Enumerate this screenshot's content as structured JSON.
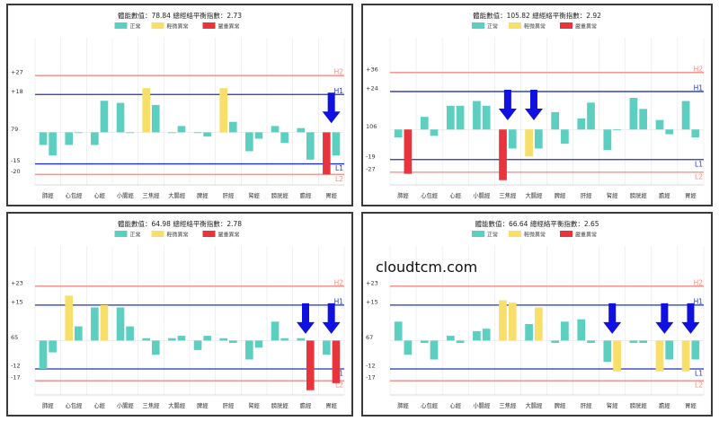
{
  "watermark": "cloudtcm.com",
  "legend_labels": [
    "正常",
    "輕微異常",
    "嚴重異常"
  ],
  "colors": {
    "normal": "#5ccfc1",
    "mild": "#f7df6a",
    "severe": "#e8343c",
    "upper_line": "#1f31c8",
    "lower_line": "#1f31c8",
    "H2_line": "#f08a84",
    "L2_line": "#f08a84",
    "arrow": "#1010e0",
    "grid": "#e6e6e6"
  },
  "chart_data": [
    {
      "type": "bar",
      "title": "體能數值：78.84 總經絡平衡指數：2.73",
      "center_label": "79",
      "ticks": [
        {
          "label": "+27",
          "value": 27
        },
        {
          "label": "+18",
          "value": 18
        },
        {
          "label": "79",
          "value": 0
        },
        {
          "label": "-15",
          "value": -15
        },
        {
          "label": "-20",
          "value": -20
        }
      ],
      "ylim": [
        -25,
        45
      ],
      "thresholds": {
        "H2": 27,
        "H1": 18,
        "L1": -15,
        "L2": -20
      },
      "threshold_labels": [
        "H2",
        "H1",
        "L1",
        "L2"
      ],
      "categories": [
        "肺經",
        "心包經",
        "心經",
        "小腸經",
        "三焦經",
        "大腸經",
        "脾經",
        "肝經",
        "腎經",
        "膀胱經",
        "膽經",
        "胃經"
      ],
      "pairs": [
        [
          {
            "v": -6,
            "s": "normal"
          },
          {
            "v": -11,
            "s": "normal"
          }
        ],
        [
          {
            "v": -6,
            "s": "normal"
          },
          {
            "v": 0,
            "s": "normal"
          }
        ],
        [
          {
            "v": -6,
            "s": "normal"
          },
          {
            "v": 15,
            "s": "normal"
          }
        ],
        [
          {
            "v": 14,
            "s": "normal"
          },
          {
            "v": 0,
            "s": "normal"
          }
        ],
        [
          {
            "v": 21,
            "s": "mild"
          },
          {
            "v": 13,
            "s": "normal"
          }
        ],
        [
          {
            "v": 0,
            "s": "normal"
          },
          {
            "v": 3,
            "s": "normal"
          }
        ],
        [
          {
            "v": 0,
            "s": "normal"
          },
          {
            "v": -2,
            "s": "normal"
          }
        ],
        [
          {
            "v": 21,
            "s": "mild"
          },
          {
            "v": 5,
            "s": "normal"
          }
        ],
        [
          {
            "v": -9,
            "s": "normal"
          },
          {
            "v": -3,
            "s": "normal"
          }
        ],
        [
          {
            "v": 3,
            "s": "normal"
          },
          {
            "v": -5,
            "s": "normal"
          }
        ],
        [
          {
            "v": 2,
            "s": "normal"
          },
          {
            "v": -13,
            "s": "normal"
          }
        ],
        [
          {
            "v": -20,
            "s": "severe"
          },
          {
            "v": -11,
            "s": "normal"
          }
        ]
      ],
      "arrows": [
        11
      ]
    },
    {
      "type": "bar",
      "title": "體能數值：105.82 總經絡平衡指數：2.92",
      "center_label": "106",
      "ticks": [
        {
          "label": "+36",
          "value": 36
        },
        {
          "label": "+24",
          "value": 24
        },
        {
          "label": "106",
          "value": 0
        },
        {
          "label": "-19",
          "value": -19
        },
        {
          "label": "-27",
          "value": -27
        }
      ],
      "ylim": [
        -35,
        58
      ],
      "thresholds": {
        "H2": 36,
        "H1": 24,
        "L1": -19,
        "L2": -27
      },
      "threshold_labels": [
        "H2",
        "H1",
        "L1",
        "L2"
      ],
      "categories": [
        "肺經",
        "心包經",
        "心經",
        "小腸經",
        "三焦經",
        "大腸經",
        "脾經",
        "肝經",
        "腎經",
        "膀胱經",
        "膽經",
        "胃經"
      ],
      "pairs": [
        [
          {
            "v": -5,
            "s": "normal"
          },
          {
            "v": -28,
            "s": "severe"
          }
        ],
        [
          {
            "v": 8,
            "s": "normal"
          },
          {
            "v": -4,
            "s": "normal"
          }
        ],
        [
          {
            "v": 15,
            "s": "normal"
          },
          {
            "v": 15,
            "s": "normal"
          }
        ],
        [
          {
            "v": 18,
            "s": "normal"
          },
          {
            "v": 15,
            "s": "normal"
          }
        ],
        [
          {
            "v": -32,
            "s": "severe"
          },
          {
            "v": -12,
            "s": "normal"
          }
        ],
        [
          {
            "v": -17,
            "s": "mild"
          },
          {
            "v": -12,
            "s": "normal"
          }
        ],
        [
          {
            "v": 11,
            "s": "normal"
          },
          {
            "v": -9,
            "s": "normal"
          }
        ],
        [
          {
            "v": 7,
            "s": "normal"
          },
          {
            "v": 17,
            "s": "normal"
          }
        ],
        [
          {
            "v": -13,
            "s": "normal"
          },
          {
            "v": 0,
            "s": "normal"
          }
        ],
        [
          {
            "v": 20,
            "s": "normal"
          },
          {
            "v": 13,
            "s": "normal"
          }
        ],
        [
          {
            "v": 6,
            "s": "normal"
          },
          {
            "v": -3,
            "s": "normal"
          }
        ],
        [
          {
            "v": 18,
            "s": "normal"
          },
          {
            "v": -5,
            "s": "normal"
          }
        ]
      ],
      "arrows": [
        4,
        5
      ]
    },
    {
      "type": "bar",
      "title": "體能數值：64.98 總經絡平衡指數：2.78",
      "center_label": "65",
      "ticks": [
        {
          "label": "+23",
          "value": 23
        },
        {
          "label": "+15",
          "value": 15
        },
        {
          "label": "65",
          "value": 0
        },
        {
          "label": "-12",
          "value": -12
        },
        {
          "label": "-17",
          "value": -17
        }
      ],
      "ylim": [
        -23,
        40
      ],
      "thresholds": {
        "H2": 23,
        "H1": 15,
        "L1": -12,
        "L2": -17
      },
      "threshold_labels": [
        "H2",
        "H1",
        "L1",
        "L2"
      ],
      "categories": [
        "肺經",
        "心包經",
        "心經",
        "小腸經",
        "三焦經",
        "大腸經",
        "脾經",
        "肝經",
        "腎經",
        "膀胱經",
        "膽經",
        "胃經"
      ],
      "pairs": [
        [
          {
            "v": -12,
            "s": "normal"
          },
          {
            "v": -5,
            "s": "normal"
          }
        ],
        [
          {
            "v": 19,
            "s": "mild"
          },
          {
            "v": 6,
            "s": "normal"
          }
        ],
        [
          {
            "v": 14,
            "s": "normal"
          },
          {
            "v": 15,
            "s": "mild"
          }
        ],
        [
          {
            "v": 14,
            "s": "normal"
          },
          {
            "v": 6,
            "s": "normal"
          }
        ],
        [
          {
            "v": 1,
            "s": "normal"
          },
          {
            "v": -6,
            "s": "normal"
          }
        ],
        [
          {
            "v": 1,
            "s": "normal"
          },
          {
            "v": 2,
            "s": "normal"
          }
        ],
        [
          {
            "v": -4,
            "s": "normal"
          },
          {
            "v": 2,
            "s": "normal"
          }
        ],
        [
          {
            "v": 1,
            "s": "normal"
          },
          {
            "v": -1,
            "s": "normal"
          }
        ],
        [
          {
            "v": -8,
            "s": "normal"
          },
          {
            "v": -3,
            "s": "normal"
          }
        ],
        [
          {
            "v": 8,
            "s": "normal"
          },
          {
            "v": 1,
            "s": "normal"
          }
        ],
        [
          {
            "v": 1,
            "s": "normal"
          },
          {
            "v": -21,
            "s": "severe"
          }
        ],
        [
          {
            "v": -6,
            "s": "normal"
          },
          {
            "v": -18,
            "s": "severe"
          }
        ]
      ],
      "arrows": [
        10,
        11
      ]
    },
    {
      "type": "bar",
      "title": "體能數值：66.64 總經絡平衡指數：2.65",
      "center_label": "67",
      "ticks": [
        {
          "label": "+23",
          "value": 23
        },
        {
          "label": "+15",
          "value": 15
        },
        {
          "label": "67",
          "value": 0
        },
        {
          "label": "-12",
          "value": -12
        },
        {
          "label": "-17",
          "value": -17
        }
      ],
      "ylim": [
        -23,
        40
      ],
      "thresholds": {
        "H2": 23,
        "H1": 15,
        "L1": -12,
        "L2": -17
      },
      "threshold_labels": [
        "H2",
        "H1",
        "L1",
        "L2"
      ],
      "categories": [
        "肺經",
        "心包經",
        "心經",
        "小腸經",
        "三焦經",
        "大腸經",
        "脾經",
        "肝經",
        "腎經",
        "膀胱經",
        "膽經",
        "胃經"
      ],
      "pairs": [
        [
          {
            "v": 8,
            "s": "normal"
          },
          {
            "v": -6,
            "s": "normal"
          }
        ],
        [
          {
            "v": -1,
            "s": "normal"
          },
          {
            "v": -8,
            "s": "normal"
          }
        ],
        [
          {
            "v": 2,
            "s": "normal"
          },
          {
            "v": -1,
            "s": "normal"
          }
        ],
        [
          {
            "v": 4,
            "s": "normal"
          },
          {
            "v": 5,
            "s": "normal"
          }
        ],
        [
          {
            "v": 17,
            "s": "mild"
          },
          {
            "v": 16,
            "s": "mild"
          }
        ],
        [
          {
            "v": 7,
            "s": "normal"
          },
          {
            "v": 14,
            "s": "mild"
          }
        ],
        [
          {
            "v": -1,
            "s": "normal"
          },
          {
            "v": 8,
            "s": "normal"
          }
        ],
        [
          {
            "v": 9,
            "s": "normal"
          },
          {
            "v": -1,
            "s": "normal"
          }
        ],
        [
          {
            "v": -9,
            "s": "normal"
          },
          {
            "v": -13,
            "s": "mild"
          }
        ],
        [
          {
            "v": -1,
            "s": "normal"
          },
          {
            "v": -1,
            "s": "normal"
          }
        ],
        [
          {
            "v": -13,
            "s": "mild"
          },
          {
            "v": -8,
            "s": "normal"
          }
        ],
        [
          {
            "v": -13,
            "s": "mild"
          },
          {
            "v": -8,
            "s": "normal"
          }
        ]
      ],
      "arrows": [
        8,
        10,
        11
      ]
    }
  ]
}
